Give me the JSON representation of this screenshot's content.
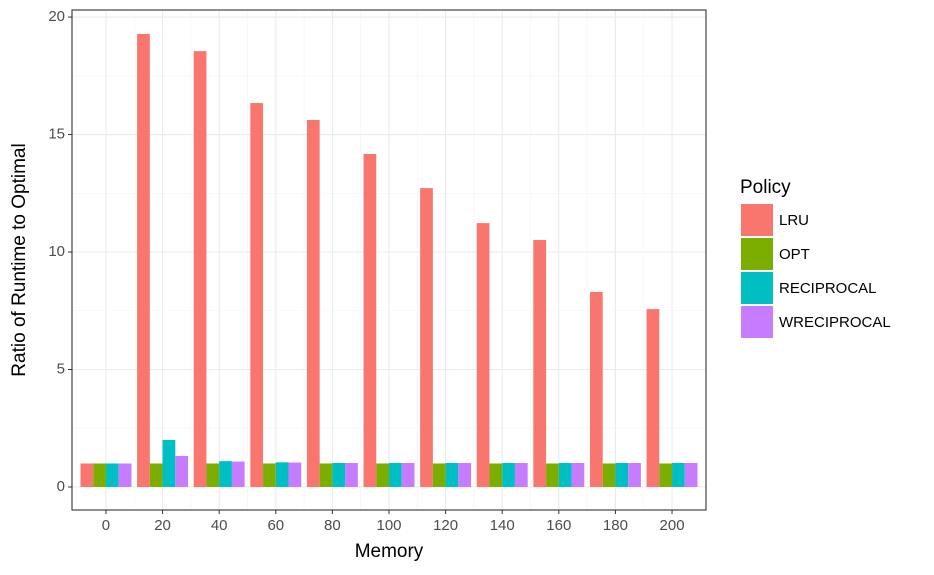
{
  "chart_data": {
    "type": "bar",
    "x_label": "Memory",
    "y_label": "Ratio of Runtime to Optimal",
    "legend_title": "Policy",
    "legend_position": "right",
    "x": [
      0,
      20,
      40,
      60,
      80,
      100,
      120,
      140,
      160,
      180,
      200
    ],
    "series": [
      {
        "name": "LRU",
        "color": "#F8766D",
        "values": [
          1.0,
          19.28,
          18.55,
          16.34,
          15.62,
          14.17,
          12.72,
          11.23,
          10.51,
          8.3,
          7.57
        ]
      },
      {
        "name": "OPT",
        "color": "#7CAE00",
        "values": [
          1,
          1,
          1,
          1,
          1,
          1,
          1,
          1,
          1,
          1,
          1
        ]
      },
      {
        "name": "RECIPROCAL",
        "color": "#00BFC4",
        "values": [
          1,
          2.0,
          1.1,
          1.05,
          1.02,
          1.02,
          1.02,
          1.02,
          1.02,
          1.02,
          1.02
        ]
      },
      {
        "name": "WRECIPROCAL",
        "color": "#C77CFF",
        "values": [
          1,
          1.32,
          1.08,
          1.04,
          1.02,
          1.02,
          1.02,
          1.02,
          1.02,
          1.02,
          1.02
        ]
      }
    ],
    "bar_group_width": 18,
    "xlim": [
      -12,
      212
    ],
    "xticks": [
      0,
      20,
      40,
      60,
      80,
      100,
      120,
      140,
      160,
      180,
      200
    ],
    "ylim": [
      -0.98,
      20.3
    ],
    "yticks": [
      0,
      5,
      10,
      15,
      20
    ],
    "grid": true
  }
}
